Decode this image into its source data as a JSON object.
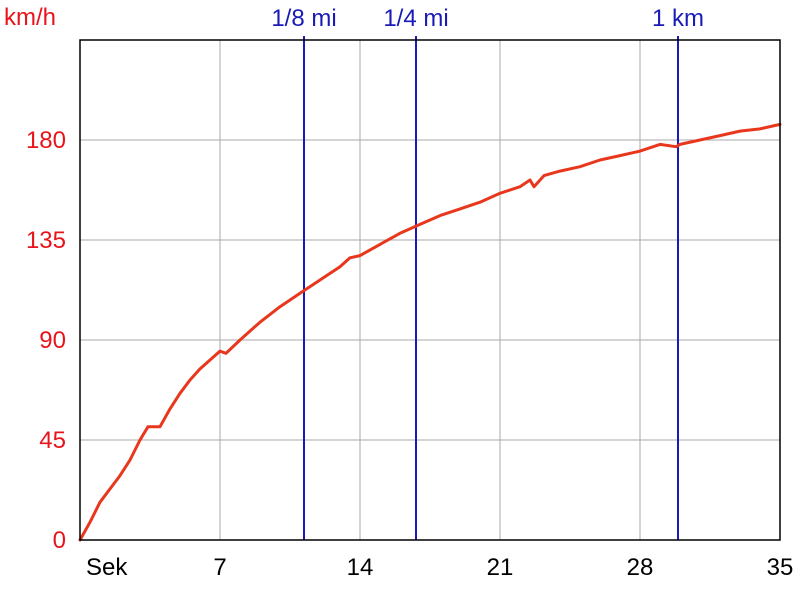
{
  "chart_data": {
    "type": "line",
    "ylabel": "km/h",
    "xlabel": "Sek",
    "xlim": [
      0,
      35
    ],
    "ylim": [
      0,
      225
    ],
    "x_ticks": [
      7,
      14,
      21,
      28,
      35
    ],
    "x_tick_labels": [
      "7",
      "14",
      "21",
      "28",
      "35"
    ],
    "y_ticks": [
      0,
      45,
      90,
      135,
      180
    ],
    "y_tick_labels": [
      "0",
      "45",
      "90",
      "135",
      "180"
    ],
    "grid": true,
    "series": [
      {
        "color": "#e8371c",
        "points": [
          [
            0,
            0
          ],
          [
            0.5,
            8
          ],
          [
            1,
            17
          ],
          [
            1.5,
            23
          ],
          [
            2,
            29
          ],
          [
            2.5,
            36
          ],
          [
            3,
            45
          ],
          [
            3.4,
            51
          ],
          [
            4,
            51
          ],
          [
            4.5,
            59
          ],
          [
            5,
            66
          ],
          [
            5.5,
            72
          ],
          [
            6,
            77
          ],
          [
            6.5,
            81
          ],
          [
            7,
            85
          ],
          [
            7.3,
            84
          ],
          [
            8,
            90
          ],
          [
            9,
            98
          ],
          [
            10,
            105
          ],
          [
            11,
            111
          ],
          [
            12,
            117
          ],
          [
            13,
            123
          ],
          [
            13.5,
            127
          ],
          [
            14,
            128
          ],
          [
            15,
            133
          ],
          [
            16,
            138
          ],
          [
            17,
            142
          ],
          [
            18,
            146
          ],
          [
            19,
            149
          ],
          [
            20,
            152
          ],
          [
            21,
            156
          ],
          [
            22,
            159
          ],
          [
            22.5,
            162
          ],
          [
            22.7,
            159
          ],
          [
            23.2,
            164
          ],
          [
            24,
            166
          ],
          [
            25,
            168
          ],
          [
            26,
            171
          ],
          [
            27,
            173
          ],
          [
            28,
            175
          ],
          [
            29,
            178
          ],
          [
            29.8,
            177
          ],
          [
            30,
            178
          ],
          [
            31,
            180
          ],
          [
            32,
            182
          ],
          [
            33,
            184
          ],
          [
            34,
            185
          ],
          [
            35,
            187
          ]
        ]
      }
    ],
    "markers": [
      {
        "label": "1/8 mi",
        "x": 11.2,
        "color": "#1a1ab8"
      },
      {
        "label": "1/4 mi",
        "x": 16.8,
        "color": "#1a1ab8"
      },
      {
        "label": "1 km",
        "x": 29.9,
        "color": "#1a1ab8"
      }
    ]
  }
}
